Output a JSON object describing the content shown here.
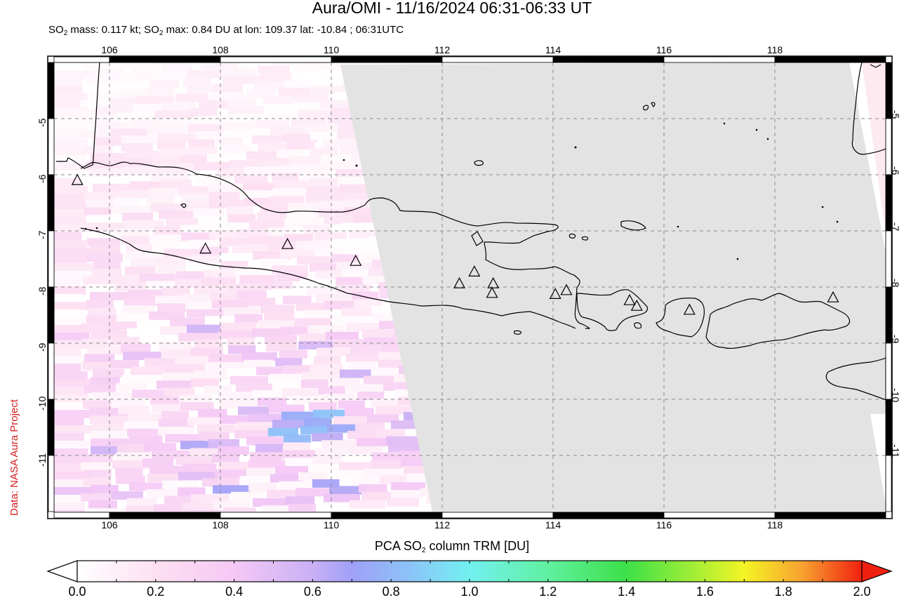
{
  "header": {
    "title": "Aura/OMI - 11/16/2024 06:31-06:33 UT",
    "subtitle_parts": [
      "SO",
      "2",
      " mass: 0.117 kt; SO",
      "2",
      " max: 0.84 DU at lon: 109.37 lat: -10.84 ; 06:31UTC"
    ]
  },
  "credit": "Data: NASA Aura Project",
  "map": {
    "lon_ticks": [
      "106",
      "108",
      "110",
      "112",
      "114",
      "116",
      "118"
    ],
    "lat_ticks": [
      "-5",
      "-6",
      "-7",
      "-8",
      "-9",
      "-10",
      "-11"
    ],
    "lon_range": [
      105,
      120
    ],
    "lat_range": [
      -12,
      -4
    ],
    "no_data_color": "#e3e3e3",
    "volcano_marker": "triangle-icon",
    "volcanoes": [
      {
        "lon": 105.42,
        "lat": -6.1
      },
      {
        "lon": 107.73,
        "lat": -7.32
      },
      {
        "lon": 109.21,
        "lat": -7.24
      },
      {
        "lon": 110.44,
        "lat": -7.54
      },
      {
        "lon": 112.31,
        "lat": -7.94
      },
      {
        "lon": 112.58,
        "lat": -7.73
      },
      {
        "lon": 112.92,
        "lat": -7.94
      },
      {
        "lon": 112.9,
        "lat": -8.11
      },
      {
        "lon": 114.04,
        "lat": -8.13
      },
      {
        "lon": 114.24,
        "lat": -8.06
      },
      {
        "lon": 115.38,
        "lat": -8.24
      },
      {
        "lon": 115.51,
        "lat": -8.34
      },
      {
        "lon": 116.46,
        "lat": -8.41
      },
      {
        "lon": 119.05,
        "lat": -8.19
      }
    ]
  },
  "colorbar": {
    "label_parts": [
      "PCA SO",
      "2",
      " column TRM [DU]"
    ],
    "ticks": [
      "0.0",
      "0.2",
      "0.4",
      "0.6",
      "0.8",
      "1.0",
      "1.2",
      "1.4",
      "1.6",
      "1.8",
      "2.0"
    ],
    "min": 0.0,
    "max": 2.0,
    "stops": [
      {
        "v": 0.0,
        "color": "#ffffff"
      },
      {
        "v": 0.2,
        "color": "#fde0f2"
      },
      {
        "v": 0.4,
        "color": "#f5c8f5"
      },
      {
        "v": 0.6,
        "color": "#c9b0f5"
      },
      {
        "v": 0.7,
        "color": "#a0a0f8"
      },
      {
        "v": 0.85,
        "color": "#8cc4f8"
      },
      {
        "v": 1.0,
        "color": "#73f0f0"
      },
      {
        "v": 1.2,
        "color": "#60f0a0"
      },
      {
        "v": 1.4,
        "color": "#3ce048"
      },
      {
        "v": 1.6,
        "color": "#b4f032"
      },
      {
        "v": 1.7,
        "color": "#f4f424"
      },
      {
        "v": 1.85,
        "color": "#f8a030"
      },
      {
        "v": 2.0,
        "color": "#f02010"
      }
    ]
  }
}
